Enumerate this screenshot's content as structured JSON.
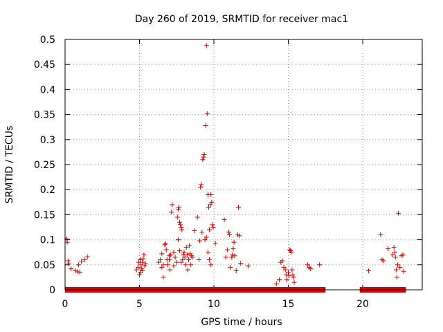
{
  "chart_data": {
    "type": "scatter",
    "title": "Day 260 of 2019, SRMTID for receiver mac1",
    "xlabel": "GPS time / hours",
    "ylabel": "SRMTID / TECUs",
    "xlim": [
      0,
      24
    ],
    "ylim": [
      0,
      0.5
    ],
    "x_ticks": [
      0,
      5,
      10,
      15,
      20
    ],
    "x_tick_labels": [
      "0",
      "5",
      "10",
      "15",
      "20"
    ],
    "y_ticks": [
      0,
      0.05,
      0.1,
      0.15,
      0.2,
      0.25,
      0.3,
      0.35,
      0.4,
      0.45,
      0.5
    ],
    "y_tick_labels": [
      "0",
      "0.05",
      "0.1",
      "0.15",
      "0.2",
      "0.25",
      "0.3",
      "0.35",
      "0.4",
      "0.45",
      "0.5"
    ],
    "grid": true,
    "marker": "+",
    "color": "#dd0000",
    "zero_baseline_intervals": [
      [
        0,
        17.5
      ],
      [
        19.8,
        22.9
      ]
    ],
    "points": [
      [
        0.1,
        0.102
      ],
      [
        0.15,
        0.095
      ],
      [
        0.2,
        0.058
      ],
      [
        0.25,
        0.052
      ],
      [
        0.4,
        0.042
      ],
      [
        0.7,
        0.038
      ],
      [
        0.85,
        0.036
      ],
      [
        1.0,
        0.035
      ],
      [
        0.9,
        0.05
      ],
      [
        1.1,
        0.057
      ],
      [
        1.3,
        0.06
      ],
      [
        1.5,
        0.066
      ],
      [
        4.8,
        0.04
      ],
      [
        4.9,
        0.045
      ],
      [
        5.0,
        0.03
      ],
      [
        5.05,
        0.035
      ],
      [
        5.1,
        0.05
      ],
      [
        5.15,
        0.042
      ],
      [
        5.2,
        0.055
      ],
      [
        5.25,
        0.062
      ],
      [
        5.3,
        0.07
      ],
      [
        5.35,
        0.048
      ],
      [
        5.4,
        0.052
      ],
      [
        4.95,
        0.055
      ],
      [
        5.05,
        0.06
      ],
      [
        5.2,
        0.038
      ],
      [
        6.3,
        0.055
      ],
      [
        6.4,
        0.06
      ],
      [
        6.5,
        0.072
      ],
      [
        6.6,
        0.025
      ],
      [
        6.7,
        0.09
      ],
      [
        6.75,
        0.092
      ],
      [
        6.8,
        0.08
      ],
      [
        6.85,
        0.06
      ],
      [
        6.9,
        0.05
      ],
      [
        7.0,
        0.068
      ],
      [
        7.05,
        0.04
      ],
      [
        7.1,
        0.07
      ],
      [
        7.15,
        0.155
      ],
      [
        7.2,
        0.17
      ],
      [
        7.3,
        0.075
      ],
      [
        7.4,
        0.065
      ],
      [
        7.5,
        0.055
      ],
      [
        7.55,
        0.145
      ],
      [
        7.6,
        0.16
      ],
      [
        7.65,
        0.165
      ],
      [
        7.7,
        0.135
      ],
      [
        7.75,
        0.13
      ],
      [
        7.8,
        0.125
      ],
      [
        7.85,
        0.12
      ],
      [
        7.6,
        0.1
      ],
      [
        7.7,
        0.078
      ],
      [
        7.9,
        0.06
      ],
      [
        7.95,
        0.07
      ],
      [
        8.0,
        0.075
      ],
      [
        8.05,
        0.065
      ],
      [
        8.1,
        0.05
      ],
      [
        8.15,
        0.085
      ],
      [
        8.2,
        0.07
      ],
      [
        8.25,
        0.04
      ],
      [
        8.3,
        0.06
      ],
      [
        8.35,
        0.088
      ],
      [
        8.4,
        0.072
      ],
      [
        8.45,
        0.05
      ],
      [
        8.5,
        0.068
      ],
      [
        8.55,
        0.065
      ],
      [
        6.5,
        0.045
      ],
      [
        6.6,
        0.05
      ],
      [
        7.0,
        0.06
      ],
      [
        7.3,
        0.048
      ],
      [
        7.8,
        0.055
      ],
      [
        8.7,
        0.118
      ],
      [
        8.9,
        0.145
      ],
      [
        9.0,
        0.06
      ],
      [
        9.05,
        0.098
      ],
      [
        9.1,
        0.205
      ],
      [
        9.15,
        0.21
      ],
      [
        9.2,
        0.115
      ],
      [
        9.25,
        0.26
      ],
      [
        9.3,
        0.265
      ],
      [
        9.35,
        0.27
      ],
      [
        9.4,
        0.1
      ],
      [
        9.45,
        0.328
      ],
      [
        9.5,
        0.488
      ],
      [
        9.55,
        0.352
      ],
      [
        9.6,
        0.19
      ],
      [
        9.65,
        0.165
      ],
      [
        9.7,
        0.12
      ],
      [
        9.75,
        0.17
      ],
      [
        9.8,
        0.19
      ],
      [
        9.85,
        0.175
      ],
      [
        9.9,
        0.13
      ],
      [
        9.95,
        0.125
      ],
      [
        9.5,
        0.105
      ],
      [
        9.6,
        0.075
      ],
      [
        9.7,
        0.06
      ],
      [
        9.8,
        0.05
      ],
      [
        10.1,
        0.093
      ],
      [
        10.7,
        0.14
      ],
      [
        10.8,
        0.065
      ],
      [
        10.9,
        0.08
      ],
      [
        11.0,
        0.115
      ],
      [
        11.05,
        0.11
      ],
      [
        11.1,
        0.045
      ],
      [
        11.2,
        0.065
      ],
      [
        11.25,
        0.07
      ],
      [
        11.3,
        0.082
      ],
      [
        11.35,
        0.095
      ],
      [
        11.4,
        0.068
      ],
      [
        11.5,
        0.038
      ],
      [
        11.6,
        0.11
      ],
      [
        11.65,
        0.165
      ],
      [
        11.7,
        0.108
      ],
      [
        11.8,
        0.053
      ],
      [
        12.3,
        0.048
      ],
      [
        14.2,
        0.012
      ],
      [
        14.4,
        0.02
      ],
      [
        14.5,
        0.055
      ],
      [
        14.6,
        0.058
      ],
      [
        14.7,
        0.045
      ],
      [
        14.8,
        0.04
      ],
      [
        14.85,
        0.03
      ],
      [
        14.9,
        0.02
      ],
      [
        15.0,
        0.035
      ],
      [
        15.05,
        0.028
      ],
      [
        15.1,
        0.08
      ],
      [
        15.15,
        0.078
      ],
      [
        15.2,
        0.075
      ],
      [
        15.25,
        0.04
      ],
      [
        15.3,
        0.03
      ],
      [
        15.35,
        0.025
      ],
      [
        15.4,
        0.015
      ],
      [
        16.3,
        0.05
      ],
      [
        16.4,
        0.045
      ],
      [
        16.5,
        0.042
      ],
      [
        17.1,
        0.05
      ],
      [
        20.4,
        0.038
      ],
      [
        21.2,
        0.11
      ],
      [
        21.3,
        0.06
      ],
      [
        21.4,
        0.058
      ],
      [
        21.7,
        0.082
      ],
      [
        22.0,
        0.07
      ],
      [
        22.1,
        0.085
      ],
      [
        22.15,
        0.075
      ],
      [
        22.2,
        0.065
      ],
      [
        22.25,
        0.04
      ],
      [
        22.3,
        0.025
      ],
      [
        22.35,
        0.05
      ],
      [
        22.4,
        0.153
      ],
      [
        22.5,
        0.045
      ],
      [
        22.6,
        0.068
      ],
      [
        22.7,
        0.07
      ],
      [
        22.75,
        0.037
      ]
    ]
  }
}
